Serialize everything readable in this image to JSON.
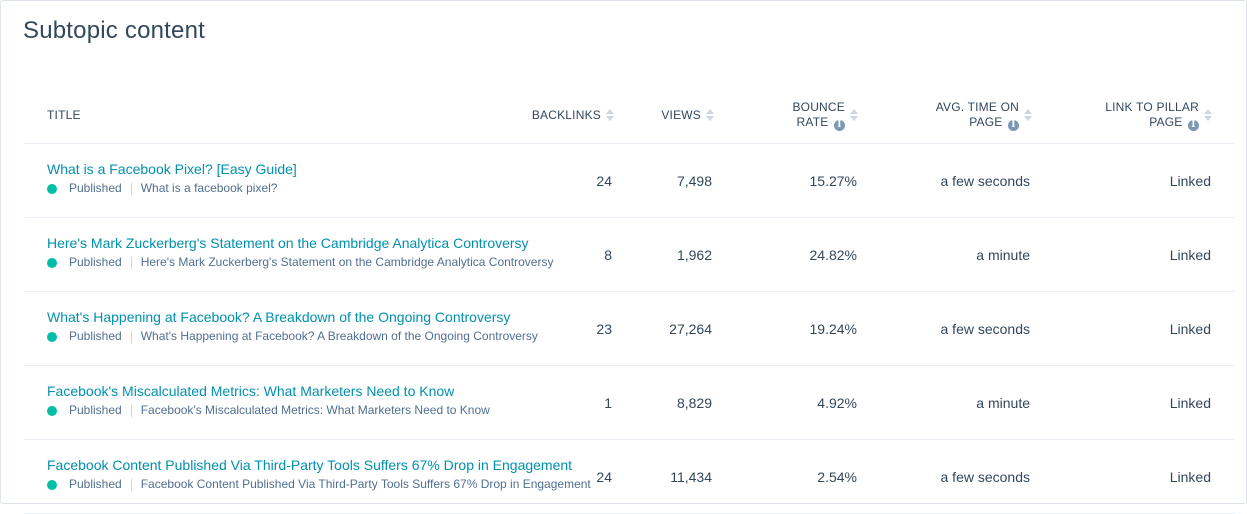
{
  "card": {
    "title": "Subtopic content"
  },
  "columns": {
    "title": "TITLE",
    "backlinks": "BACKLINKS",
    "views": "VIEWS",
    "bounce_line1": "BOUNCE",
    "bounce_line2": "RATE",
    "avg_line1": "AVG. TIME ON",
    "avg_line2": "PAGE",
    "link_line1": "LINK TO PILLAR",
    "link_line2": "PAGE"
  },
  "rows": [
    {
      "title": "What is a Facebook Pixel? [Easy Guide]",
      "status": "Published",
      "slug": "What is a facebook pixel?",
      "backlinks": "24",
      "views": "7,498",
      "bounce": "15.27%",
      "avg_time": "a few seconds",
      "link": "Linked"
    },
    {
      "title": "Here's Mark Zuckerberg's Statement on the Cambridge Analytica Controversy",
      "status": "Published",
      "slug": "Here's Mark Zuckerberg's Statement on the Cambridge Analytica Controversy",
      "backlinks": "8",
      "views": "1,962",
      "bounce": "24.82%",
      "avg_time": "a minute",
      "link": "Linked"
    },
    {
      "title": "What's Happening at Facebook? A Breakdown of the Ongoing Controversy",
      "status": "Published",
      "slug": "What's Happening at Facebook? A Breakdown of the Ongoing Controversy",
      "backlinks": "23",
      "views": "27,264",
      "bounce": "19.24%",
      "avg_time": "a few seconds",
      "link": "Linked"
    },
    {
      "title": "Facebook's Miscalculated Metrics: What Marketers Need to Know",
      "status": "Published",
      "slug": "Facebook's Miscalculated Metrics: What Marketers Need to Know",
      "backlinks": "1",
      "views": "8,829",
      "bounce": "4.92%",
      "avg_time": "a minute",
      "link": "Linked"
    },
    {
      "title": "Facebook Content Published Via Third-Party Tools Suffers 67% Drop in Engagement",
      "status": "Published",
      "slug": "Facebook Content Published Via Third-Party Tools Suffers 67% Drop in Engagement",
      "backlinks": "24",
      "views": "11,434",
      "bounce": "2.54%",
      "avg_time": "a few seconds",
      "link": "Linked"
    }
  ],
  "icons": {
    "status_dot_color": "#00bda5",
    "info": "info-icon",
    "sort": "sort-icon"
  },
  "colors": {
    "link": "#0091ae",
    "text": "#33475b"
  }
}
